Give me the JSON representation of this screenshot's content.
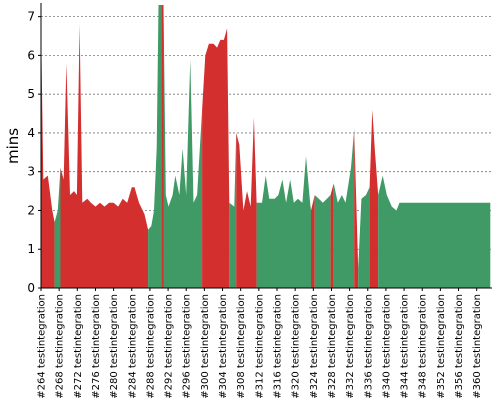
{
  "chart_data": {
    "type": "area",
    "ylabel": "mins",
    "xlabel": "",
    "ylim": [
      0,
      7.3
    ],
    "yticks": [
      0,
      1,
      2,
      3,
      4,
      5,
      6,
      7
    ],
    "grid": "horizontal-dashed",
    "status_colors": {
      "failure": "#d32f2f",
      "success": "#3f9a66"
    },
    "tick_labels": [
      "#264 testintegration",
      "#268 testintegration",
      "#272 testintegration",
      "#276 testintegration",
      "#280 testintegration",
      "#284 testintegration",
      "#288 testintegration",
      "#292 testintegration",
      "#296 testintegration",
      "#300 testintegration",
      "#304 testintegration",
      "#308 testintegration",
      "#312 testintegration",
      "#316 testintegration",
      "#320 testintegration",
      "#324 testintegration",
      "#328 testintegration",
      "#332 testintegration",
      "#336 testintegration",
      "#340 testintegration",
      "#344 testintegration",
      "#348 testintegration",
      "#352 testintegration",
      "#356 testintegration",
      "#360 testintegration"
    ],
    "x_range": [
      264,
      363
    ],
    "points": [
      [
        264.0,
        6.9,
        "f"
      ],
      [
        264.5,
        2.8,
        "f"
      ],
      [
        265.5,
        2.9,
        "f"
      ],
      [
        266.5,
        2.0,
        "f"
      ],
      [
        267.0,
        1.7,
        "s"
      ],
      [
        267.7,
        2.0,
        "s"
      ],
      [
        268.3,
        3.1,
        "f"
      ],
      [
        269.0,
        2.8,
        "f"
      ],
      [
        269.6,
        5.8,
        "f"
      ],
      [
        270.4,
        2.4,
        "f"
      ],
      [
        271.3,
        2.5,
        "f"
      ],
      [
        271.9,
        2.4,
        "f"
      ],
      [
        272.5,
        6.8,
        "f"
      ],
      [
        273.1,
        2.2,
        "f"
      ],
      [
        274.2,
        2.3,
        "f"
      ],
      [
        275.0,
        2.2,
        "f"
      ],
      [
        276.0,
        2.1,
        "f"
      ],
      [
        277.0,
        2.2,
        "f"
      ],
      [
        278.0,
        2.1,
        "f"
      ],
      [
        279.0,
        2.2,
        "f"
      ],
      [
        280.0,
        2.2,
        "f"
      ],
      [
        281.0,
        2.1,
        "f"
      ],
      [
        282.0,
        2.3,
        "f"
      ],
      [
        283.0,
        2.2,
        "f"
      ],
      [
        284.0,
        2.6,
        "f"
      ],
      [
        284.6,
        2.6,
        "f"
      ],
      [
        285.6,
        2.2,
        "f"
      ],
      [
        286.8,
        1.9,
        "f"
      ],
      [
        287.6,
        1.5,
        "s"
      ],
      [
        288.3,
        1.6,
        "s"
      ],
      [
        288.9,
        2.0,
        "s"
      ],
      [
        289.5,
        3.6,
        "s"
      ],
      [
        289.9,
        7.3,
        "s"
      ],
      [
        290.5,
        7.3,
        "f"
      ],
      [
        291.0,
        7.3,
        "s"
      ],
      [
        291.5,
        2.4,
        "s"
      ],
      [
        292.1,
        2.1,
        "s"
      ],
      [
        293.0,
        2.4,
        "s"
      ],
      [
        293.6,
        2.9,
        "s"
      ],
      [
        294.5,
        2.4,
        "s"
      ],
      [
        295.2,
        3.6,
        "s"
      ],
      [
        296.0,
        2.4,
        "s"
      ],
      [
        296.9,
        5.9,
        "s"
      ],
      [
        297.6,
        2.2,
        "s"
      ],
      [
        298.4,
        2.4,
        "s"
      ],
      [
        299.5,
        4.6,
        "f"
      ],
      [
        300.2,
        6.0,
        "f"
      ],
      [
        301.0,
        6.3,
        "f"
      ],
      [
        302.0,
        6.3,
        "f"
      ],
      [
        302.8,
        6.2,
        "f"
      ],
      [
        303.5,
        6.4,
        "f"
      ],
      [
        304.3,
        6.4,
        "f"
      ],
      [
        305.0,
        6.7,
        "f"
      ],
      [
        305.5,
        2.2,
        "s"
      ],
      [
        306.6,
        2.1,
        "s"
      ],
      [
        307.0,
        4.0,
        "f"
      ],
      [
        307.7,
        3.7,
        "f"
      ],
      [
        308.6,
        2.0,
        "f"
      ],
      [
        309.4,
        2.5,
        "f"
      ],
      [
        310.2,
        2.1,
        "f"
      ],
      [
        310.9,
        4.4,
        "f"
      ],
      [
        311.5,
        2.2,
        "s"
      ],
      [
        312.7,
        2.2,
        "s"
      ],
      [
        313.5,
        2.9,
        "s"
      ],
      [
        314.3,
        2.3,
        "s"
      ],
      [
        315.5,
        2.3,
        "s"
      ],
      [
        316.3,
        2.4,
        "s"
      ],
      [
        317.2,
        2.8,
        "s"
      ],
      [
        318.0,
        2.2,
        "s"
      ],
      [
        318.9,
        2.8,
        "s"
      ],
      [
        319.7,
        2.2,
        "s"
      ],
      [
        320.6,
        2.3,
        "s"
      ],
      [
        321.6,
        2.2,
        "s"
      ],
      [
        322.4,
        3.4,
        "s"
      ],
      [
        323.3,
        2.2,
        "s"
      ],
      [
        323.5,
        2.0,
        "f"
      ],
      [
        324.3,
        2.4,
        "s"
      ],
      [
        325.2,
        2.3,
        "s"
      ],
      [
        326.1,
        2.2,
        "s"
      ],
      [
        327.0,
        2.3,
        "s"
      ],
      [
        327.8,
        2.4,
        "f"
      ],
      [
        328.5,
        2.7,
        "s"
      ],
      [
        329.4,
        2.2,
        "s"
      ],
      [
        330.3,
        2.4,
        "s"
      ],
      [
        331.1,
        2.2,
        "s"
      ],
      [
        332.3,
        3.1,
        "s"
      ],
      [
        333.0,
        4.1,
        "f"
      ],
      [
        333.9,
        0.5,
        "s"
      ],
      [
        334.6,
        2.3,
        "s"
      ],
      [
        335.6,
        2.4,
        "s"
      ],
      [
        336.4,
        2.6,
        "f"
      ],
      [
        337.0,
        4.6,
        "f"
      ],
      [
        337.6,
        3.5,
        "f"
      ],
      [
        338.3,
        2.4,
        "s"
      ],
      [
        339.3,
        2.9,
        "s"
      ],
      [
        340.2,
        2.4,
        "s"
      ],
      [
        341.3,
        2.1,
        "s"
      ],
      [
        342.3,
        2.0,
        "s"
      ],
      [
        343.0,
        2.2,
        "s"
      ],
      [
        363.0,
        2.2,
        "s"
      ]
    ]
  }
}
